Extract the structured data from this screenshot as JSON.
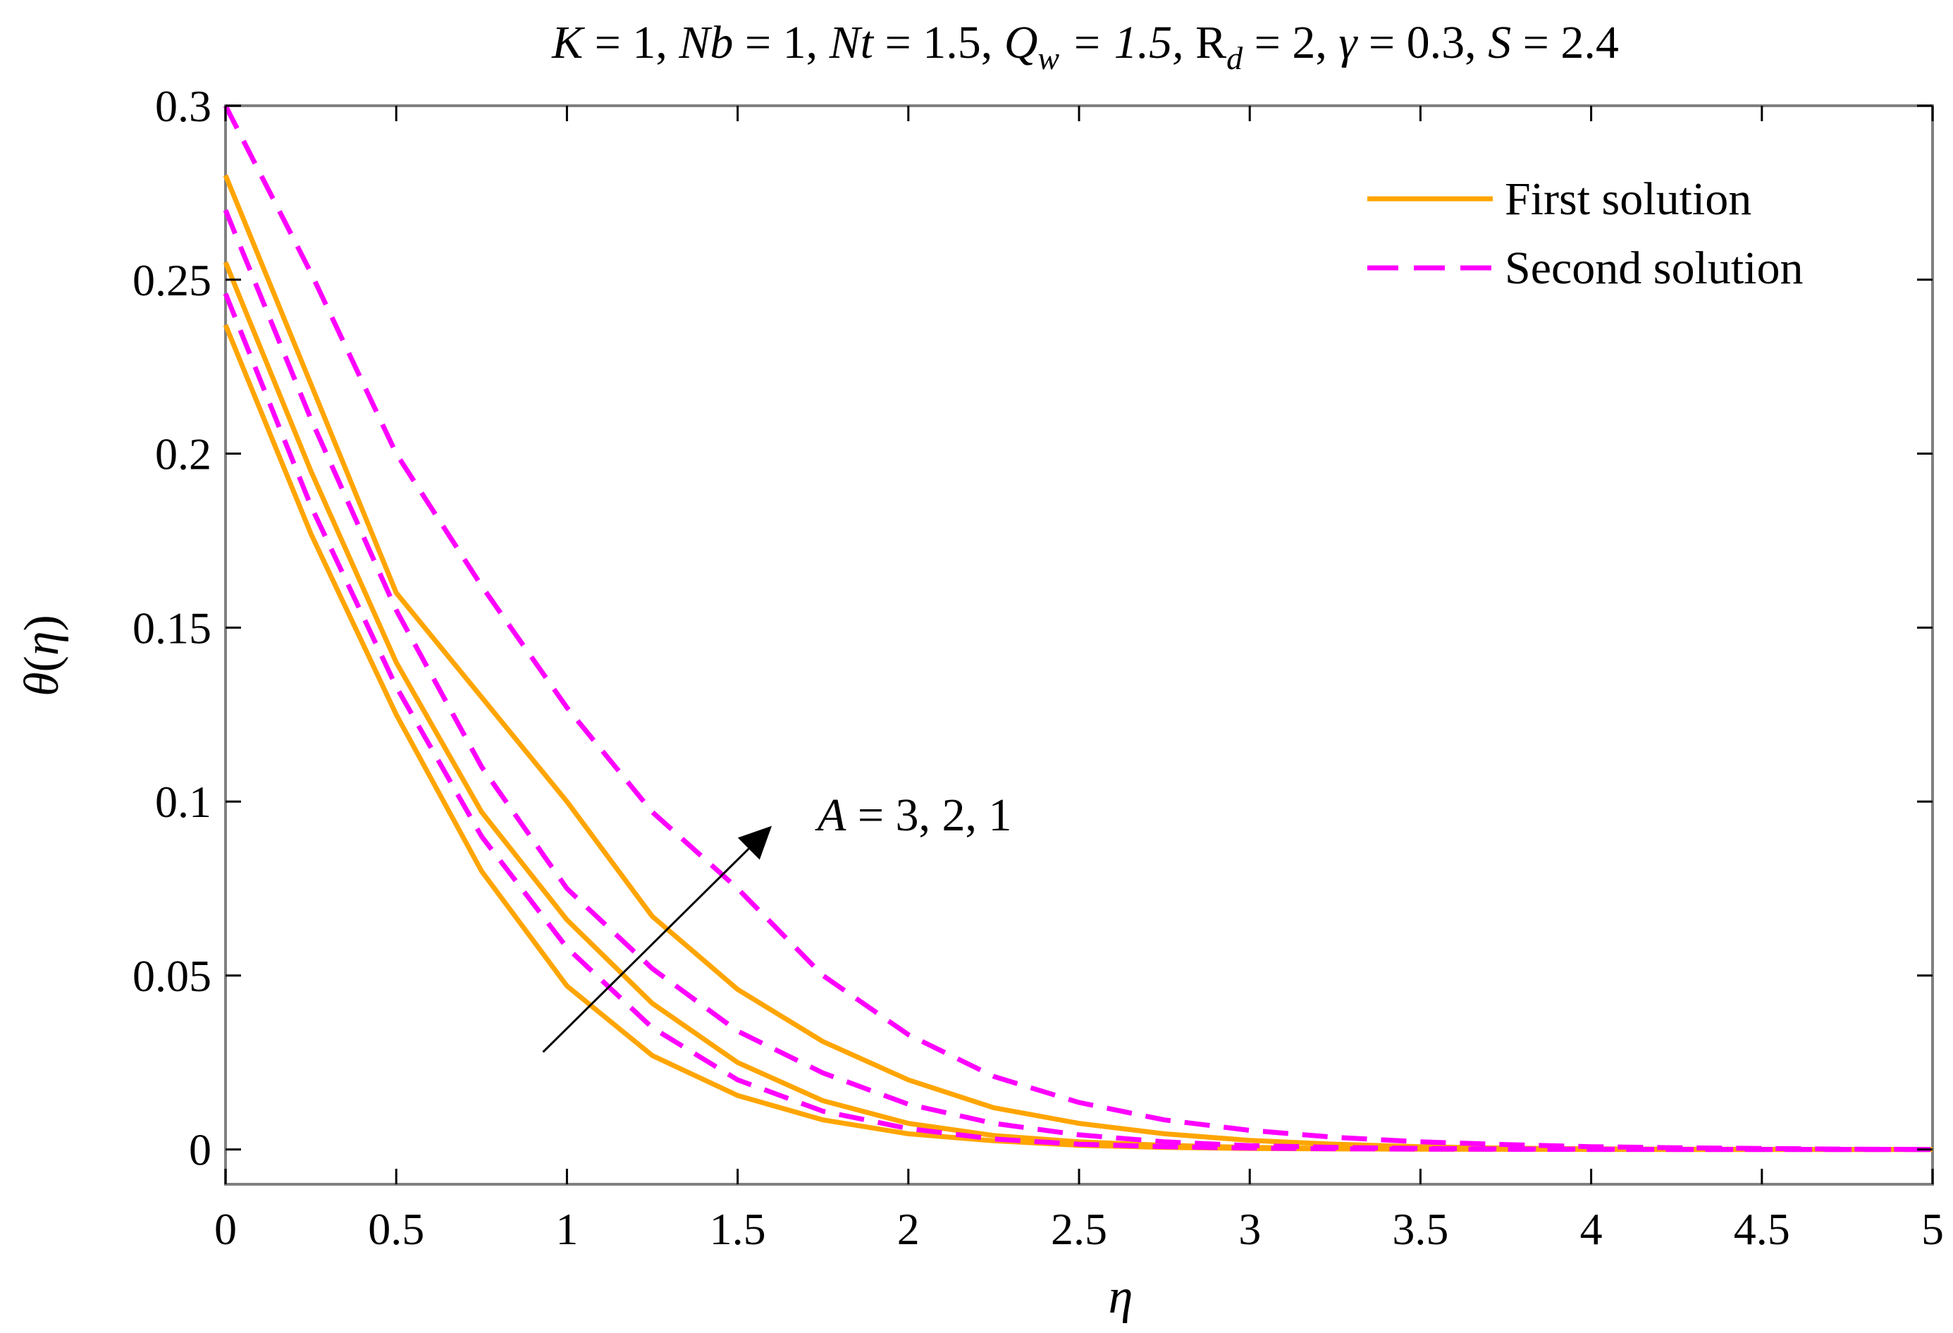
{
  "chart_data": {
    "type": "line",
    "title_parts": [
      "K",
      " = 1, ",
      "Nb",
      " = 1, ",
      "Nt",
      " = 1.5, ",
      "Q",
      "w",
      " = 1.5, ",
      "R",
      "d",
      " = 2, ",
      "γ",
      " = 0.3, ",
      "S",
      " = 2.4"
    ],
    "xlabel": "η",
    "ylabel_parts": [
      "θ",
      "(",
      "η",
      ")"
    ],
    "xlim": [
      0,
      5
    ],
    "ylim": [
      -0.01,
      0.3
    ],
    "x_ticks": [
      0,
      0.5,
      1,
      1.5,
      2,
      2.5,
      3,
      3.5,
      4,
      4.5,
      5
    ],
    "x_tick_labels": [
      "0",
      "0.5",
      "1",
      "1.5",
      "2",
      "2.5",
      "3",
      "3.5",
      "4",
      "4.5",
      "5"
    ],
    "y_ticks": [
      0,
      0.05,
      0.1,
      0.15,
      0.2,
      0.25,
      0.3
    ],
    "y_tick_labels": [
      "0",
      "0.05",
      "0.1",
      "0.15",
      "0.2",
      "0.25",
      "0.3"
    ],
    "grid": false,
    "legend_position": "top-right",
    "legend": [
      {
        "label": "First solution",
        "style": "solid",
        "color": "#FFA500"
      },
      {
        "label": "Second solution",
        "style": "dashed",
        "color": "#FF00FF"
      }
    ],
    "annotation": {
      "parts": [
        "A",
        " = 3, 2, 1"
      ],
      "arrow_from": [
        0.93,
        0.028
      ],
      "arrow_to": [
        1.6,
        0.093
      ]
    },
    "x": [
      0,
      0.25,
      0.5,
      0.75,
      1,
      1.25,
      1.5,
      1.75,
      2,
      2.25,
      2.5,
      2.75,
      3,
      3.25,
      3.5,
      3.75,
      4,
      4.25,
      4.5,
      4.75,
      5
    ],
    "series": [
      {
        "solution": "first",
        "A": 3,
        "color": "#FFA500",
        "style": "solid",
        "values": [
          0.237,
          0.177,
          0.125,
          0.08,
          0.047,
          0.027,
          0.0155,
          0.0085,
          0.0045,
          0.0025,
          0.0012,
          0.0006,
          0.0003,
          0.00015,
          0.0001,
          5e-05,
          0,
          0,
          0,
          0,
          0
        ]
      },
      {
        "solution": "first",
        "A": 2,
        "color": "#FFA500",
        "style": "solid",
        "values": [
          0.255,
          0.195,
          0.14,
          0.097,
          0.066,
          0.042,
          0.025,
          0.014,
          0.0075,
          0.004,
          0.0022,
          0.0012,
          0.0006,
          0.0003,
          0.00015,
          0.0001,
          5e-05,
          0,
          0,
          0,
          0
        ]
      },
      {
        "solution": "first",
        "A": 1,
        "color": "#FFA500",
        "style": "solid",
        "values": [
          0.28,
          0.22,
          0.16,
          0.13,
          0.1,
          0.067,
          0.046,
          0.031,
          0.02,
          0.012,
          0.0075,
          0.0045,
          0.0026,
          0.0015,
          0.0008,
          0.0004,
          0.0002,
          0.0001,
          5e-05,
          0,
          0
        ]
      },
      {
        "solution": "second",
        "A": 3,
        "color": "#FF00FF",
        "style": "dashed",
        "values": [
          0.246,
          0.185,
          0.133,
          0.09,
          0.058,
          0.035,
          0.02,
          0.011,
          0.006,
          0.003,
          0.0015,
          0.0008,
          0.0004,
          0.0002,
          0.0001,
          5e-05,
          0,
          0,
          0,
          0,
          0
        ]
      },
      {
        "solution": "second",
        "A": 2,
        "color": "#FF00FF",
        "style": "dashed",
        "values": [
          0.27,
          0.21,
          0.155,
          0.11,
          0.075,
          0.052,
          0.034,
          0.022,
          0.013,
          0.0075,
          0.0042,
          0.0022,
          0.0011,
          0.0006,
          0.0003,
          0.00015,
          0.0001,
          0,
          0,
          0,
          0
        ]
      },
      {
        "solution": "second",
        "A": 1,
        "color": "#FF00FF",
        "style": "dashed",
        "values": [
          0.3,
          0.252,
          0.2,
          0.162,
          0.127,
          0.097,
          0.075,
          0.05,
          0.033,
          0.021,
          0.0135,
          0.0085,
          0.0055,
          0.0035,
          0.0022,
          0.0014,
          0.0008,
          0.0005,
          0.0003,
          0.0001,
          0
        ]
      }
    ]
  }
}
